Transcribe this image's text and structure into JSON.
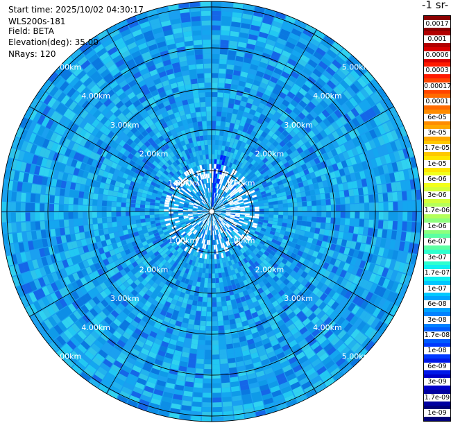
{
  "info": {
    "start_time": "Start time: 2025/10/02 04:30:17",
    "instrument": "WLS200s-181",
    "field": "Field: BETA",
    "elevation": "Elevation(deg): 35.00",
    "nrays": "NRays: 120"
  },
  "colorbar": {
    "title": "-1 sr-",
    "labels": [
      "0.0017",
      "0.001",
      "0.0006",
      "0.0003",
      "0.00017",
      "0.0001",
      "6e-05",
      "3e-05",
      "1.7e-05",
      "1e-05",
      "6e-06",
      "3e-06",
      "1.7e-06",
      "1e-06",
      "6e-07",
      "3e-07",
      "1.7e-07",
      "1e-07",
      "6e-08",
      "3e-08",
      "1.7e-08",
      "1e-08",
      "6e-09",
      "3e-09",
      "1.7e-09",
      "1e-09"
    ],
    "colors": [
      "#8b0000",
      "#b20000",
      "#d90000",
      "#ff1a00",
      "#ff4400",
      "#ff6a00",
      "#ff8c00",
      "#ffa800",
      "#ffc800",
      "#ffe600",
      "#f2ff1a",
      "#d4ff3a",
      "#b4ff5a",
      "#8cff7c",
      "#5cffa2",
      "#2dffce",
      "#0ef0f0",
      "#00c8ff",
      "#00a4ff",
      "#0082ff",
      "#005cff",
      "#0038ff",
      "#0018e8",
      "#0000c8",
      "#0000a0",
      "#000078"
    ]
  },
  "range_labels": {
    "r1": "1.00km",
    "r2": "2.00km",
    "r3": "3.00km",
    "r4": "4.00km",
    "r5": "5.00km"
  }
}
